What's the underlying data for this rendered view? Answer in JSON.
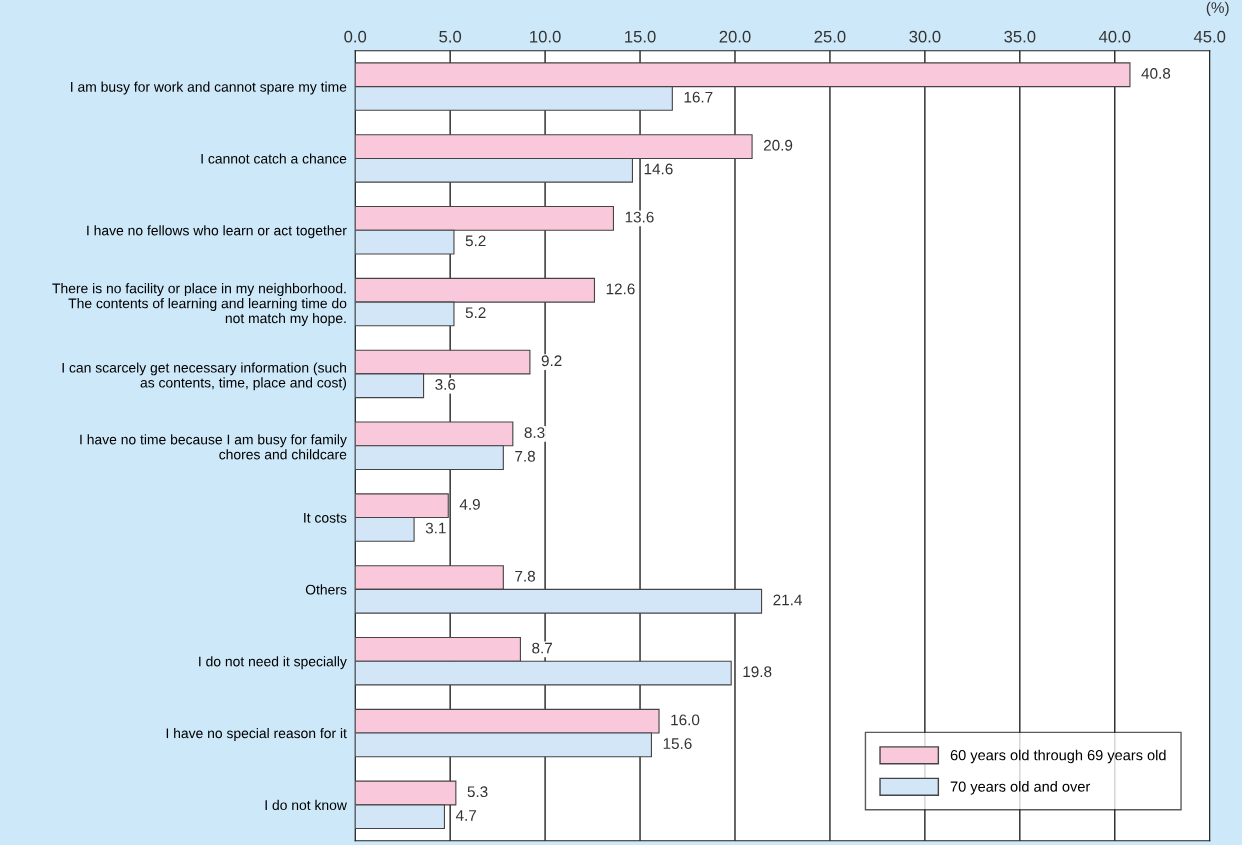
{
  "chart_data": {
    "type": "bar",
    "orientation": "horizontal",
    "categories": [
      "I am busy for work and cannot spare my time",
      "I cannot catch a chance",
      "I have no fellows who learn or act together",
      "There is no facility or place in my neighborhood.\nThe contents of learning and learning time do\nnot match my hope.",
      "I can scarcely get necessary information (such\nas contents, time, place and cost)",
      "I have no time because I am busy for family\nchores and childcare",
      "It costs",
      "Others",
      "I do not need it specially",
      "I have no special reason for it",
      "I do not know"
    ],
    "series": [
      {
        "name": "60 years old through 69 years old",
        "color": "#f9c8da",
        "values": [
          40.8,
          20.9,
          13.6,
          12.6,
          9.2,
          8.3,
          4.9,
          7.8,
          8.7,
          16.0,
          5.3
        ],
        "value_labels": [
          "40.8",
          "20.9",
          "13.6",
          "12.6",
          "9.2",
          "8.3",
          "4.9",
          "7.8",
          "8.7",
          "16.0",
          "5.3"
        ]
      },
      {
        "name": "70 years old and over",
        "color": "#d3e6f7",
        "values": [
          16.7,
          14.6,
          5.2,
          5.2,
          3.6,
          7.8,
          3.1,
          21.4,
          19.8,
          15.6,
          4.7
        ],
        "value_labels": [
          "16.7",
          "14.6",
          "5.2",
          "5.2",
          "3.6",
          "7.8",
          "3.1",
          "21.4",
          "19.8",
          "15.6",
          "4.7"
        ]
      }
    ],
    "xlim": [
      0,
      45
    ],
    "xticks": [
      {
        "value": 0,
        "label": "0.0"
      },
      {
        "value": 5,
        "label": "5.0"
      },
      {
        "value": 10,
        "label": "10.0"
      },
      {
        "value": 15,
        "label": "15.0"
      },
      {
        "value": 20,
        "label": "20.0"
      },
      {
        "value": 25,
        "label": "25.0"
      },
      {
        "value": 30,
        "label": "30.0"
      },
      {
        "value": 35,
        "label": "35.0"
      },
      {
        "value": 40,
        "label": "40.0"
      },
      {
        "value": 45,
        "label": "45.0"
      }
    ],
    "annotations": [
      "(%)"
    ],
    "grid": "x",
    "legend": "bottom right"
  }
}
